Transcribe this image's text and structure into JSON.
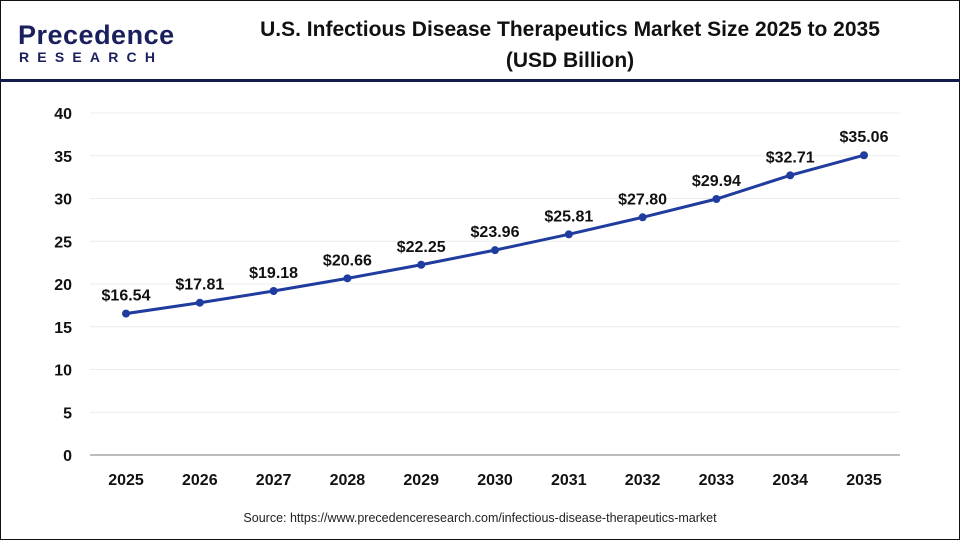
{
  "logo": {
    "text_top": "Precedence",
    "text_bottom": "RESEARCH"
  },
  "title_line1": "U.S. Infectious Disease Therapeutics Market Size 2025 to 2035",
  "title_line2": "(USD Billion)",
  "source": "Source: https://www.precedenceresearch.com/infectious-disease-therapeutics-market",
  "colors": {
    "line": "#1f3c9e",
    "axis": "#bdbdbd",
    "grid": "#ececec",
    "brand_dark": "#1a1f5e",
    "brand_blue": "#2d6fd8"
  },
  "chart_data": {
    "type": "line",
    "title": "U.S. Infectious Disease Therapeutics Market Size 2025 to 2035 (USD Billion)",
    "categories": [
      "2025",
      "2026",
      "2027",
      "2028",
      "2029",
      "2030",
      "2031",
      "2032",
      "2033",
      "2034",
      "2035"
    ],
    "values": [
      16.54,
      17.81,
      19.18,
      20.66,
      22.25,
      23.96,
      25.81,
      27.8,
      29.94,
      32.71,
      35.06
    ],
    "data_labels": [
      "$16.54",
      "$17.81",
      "$19.18",
      "$20.66",
      "$22.25",
      "$23.96",
      "$25.81",
      "$27.80",
      "$29.94",
      "$32.71",
      "$35.06"
    ],
    "yticks": [
      "0",
      "5",
      "10",
      "15",
      "20",
      "25",
      "30",
      "35",
      "40"
    ],
    "ylim": [
      0,
      40
    ],
    "grid": true,
    "legend": "none"
  }
}
